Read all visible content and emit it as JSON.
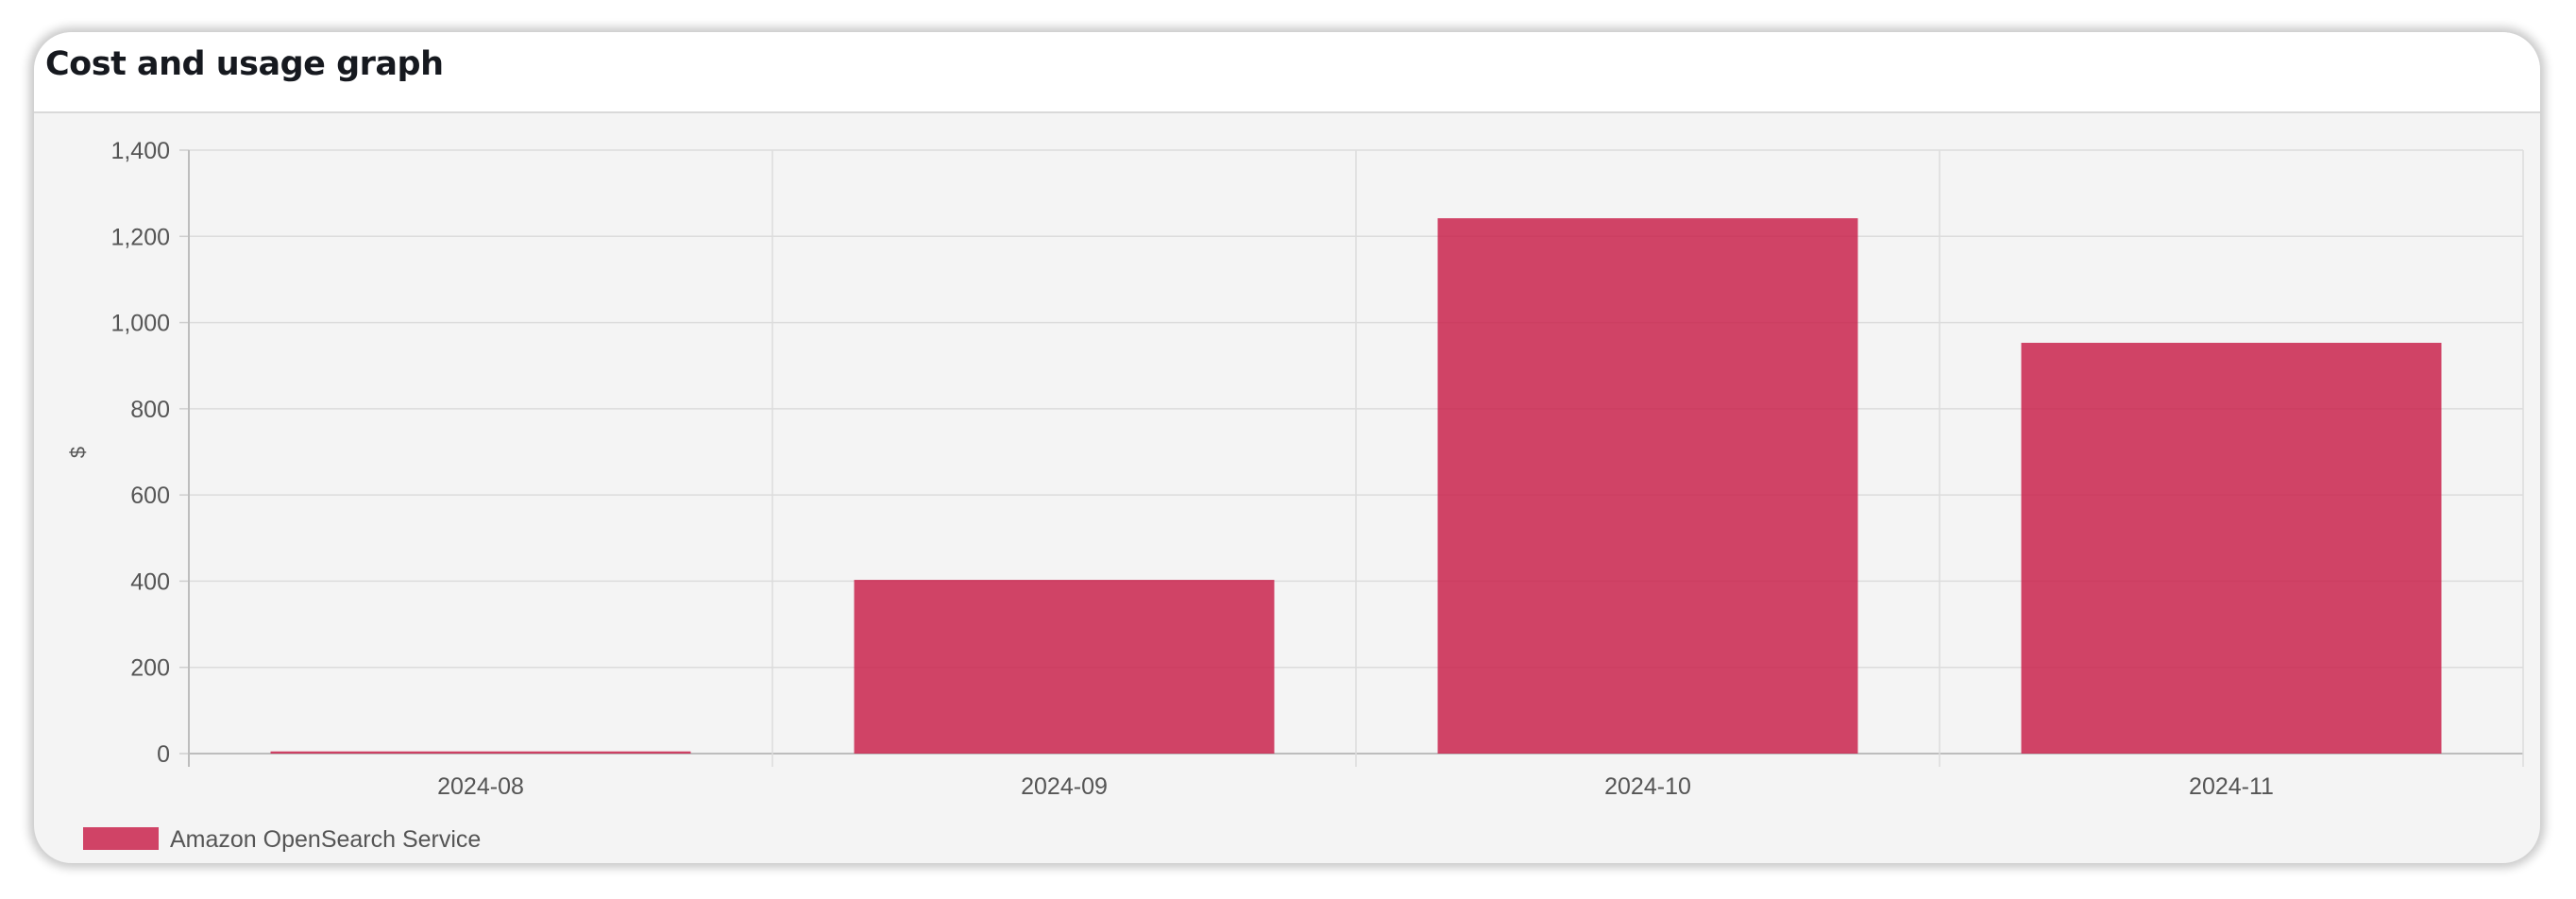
{
  "card": {
    "title": "Cost and usage graph"
  },
  "chart_data": {
    "type": "bar",
    "categories": [
      "2024-08",
      "2024-09",
      "2024-10",
      "2024-11"
    ],
    "series": [
      {
        "name": "Amazon OpenSearch Service",
        "values": [
          5,
          403,
          1242,
          953
        ],
        "color": "#c9234c"
      }
    ],
    "title": "",
    "xlabel": "",
    "ylabel": "$",
    "ylim": [
      0,
      1400
    ],
    "yticks": [
      0,
      200,
      400,
      600,
      800,
      1000,
      1200,
      1400
    ],
    "ytick_labels": [
      "0",
      "200",
      "400",
      "600",
      "800",
      "1,000",
      "1,200",
      "1,400"
    ],
    "grid": true,
    "legend_position": "bottom-left"
  }
}
